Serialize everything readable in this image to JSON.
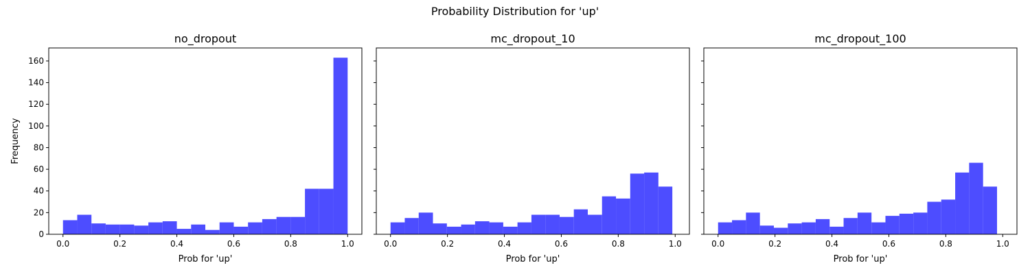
{
  "figure": {
    "suptitle": "Probability Distribution for 'up'",
    "ylabel": "Frequency"
  },
  "chart_data": [
    {
      "type": "bar",
      "title": "no_dropout",
      "xlabel": "Prob for 'up'",
      "ylabel": "Frequency",
      "xlim": [
        -0.05,
        1.05
      ],
      "ylim": [
        0,
        172
      ],
      "xticks": [
        "0.0",
        "0.2",
        "0.4",
        "0.6",
        "0.8",
        "1.0"
      ],
      "yticks": [
        "0",
        "20",
        "40",
        "60",
        "80",
        "100",
        "120",
        "140",
        "160"
      ],
      "bar_color": "#4d4dff",
      "bins": [
        {
          "x0": 0.0,
          "x1": 0.05,
          "count": 13
        },
        {
          "x0": 0.05,
          "x1": 0.1,
          "count": 18
        },
        {
          "x0": 0.1,
          "x1": 0.15,
          "count": 10
        },
        {
          "x0": 0.15,
          "x1": 0.2,
          "count": 9
        },
        {
          "x0": 0.2,
          "x1": 0.25,
          "count": 9
        },
        {
          "x0": 0.25,
          "x1": 0.3,
          "count": 8
        },
        {
          "x0": 0.3,
          "x1": 0.35,
          "count": 11
        },
        {
          "x0": 0.35,
          "x1": 0.4,
          "count": 12
        },
        {
          "x0": 0.4,
          "x1": 0.45,
          "count": 5
        },
        {
          "x0": 0.45,
          "x1": 0.5,
          "count": 9
        },
        {
          "x0": 0.5,
          "x1": 0.55,
          "count": 4
        },
        {
          "x0": 0.55,
          "x1": 0.6,
          "count": 11
        },
        {
          "x0": 0.6,
          "x1": 0.65,
          "count": 7
        },
        {
          "x0": 0.65,
          "x1": 0.7,
          "count": 11
        },
        {
          "x0": 0.7,
          "x1": 0.75,
          "count": 14
        },
        {
          "x0": 0.75,
          "x1": 0.8,
          "count": 16
        },
        {
          "x0": 0.8,
          "x1": 0.85,
          "count": 16
        },
        {
          "x0": 0.85,
          "x1": 0.9,
          "count": 42
        },
        {
          "x0": 0.9,
          "x1": 0.95,
          "count": 42
        },
        {
          "x0": 0.95,
          "x1": 1.0,
          "count": 163
        }
      ]
    },
    {
      "type": "bar",
      "title": "mc_dropout_10",
      "xlabel": "Prob for 'up'",
      "xlim": [
        -0.05,
        1.05
      ],
      "ylim": [
        0,
        172
      ],
      "xticks": [
        "0.0",
        "0.2",
        "0.4",
        "0.6",
        "0.8",
        "1.0"
      ],
      "bar_color": "#4d4dff",
      "bins": [
        {
          "x0": 0.0,
          "x1": 0.05,
          "count": 11
        },
        {
          "x0": 0.05,
          "x1": 0.099,
          "count": 15
        },
        {
          "x0": 0.099,
          "x1": 0.149,
          "count": 20
        },
        {
          "x0": 0.149,
          "x1": 0.198,
          "count": 10
        },
        {
          "x0": 0.198,
          "x1": 0.248,
          "count": 7
        },
        {
          "x0": 0.248,
          "x1": 0.297,
          "count": 9
        },
        {
          "x0": 0.297,
          "x1": 0.347,
          "count": 12
        },
        {
          "x0": 0.347,
          "x1": 0.396,
          "count": 11
        },
        {
          "x0": 0.396,
          "x1": 0.446,
          "count": 7
        },
        {
          "x0": 0.446,
          "x1": 0.495,
          "count": 11
        },
        {
          "x0": 0.495,
          "x1": 0.545,
          "count": 18
        },
        {
          "x0": 0.545,
          "x1": 0.594,
          "count": 18
        },
        {
          "x0": 0.594,
          "x1": 0.644,
          "count": 16
        },
        {
          "x0": 0.644,
          "x1": 0.693,
          "count": 23
        },
        {
          "x0": 0.693,
          "x1": 0.743,
          "count": 18
        },
        {
          "x0": 0.743,
          "x1": 0.792,
          "count": 35
        },
        {
          "x0": 0.792,
          "x1": 0.842,
          "count": 33
        },
        {
          "x0": 0.842,
          "x1": 0.891,
          "count": 56
        },
        {
          "x0": 0.891,
          "x1": 0.941,
          "count": 57
        },
        {
          "x0": 0.941,
          "x1": 0.99,
          "count": 44
        }
      ]
    },
    {
      "type": "bar",
      "title": "mc_dropout_100",
      "xlabel": "Prob for 'up'",
      "xlim": [
        -0.05,
        1.05
      ],
      "ylim": [
        0,
        172
      ],
      "xticks": [
        "0.0",
        "0.2",
        "0.4",
        "0.6",
        "0.8",
        "1.0"
      ],
      "bar_color": "#4d4dff",
      "bins": [
        {
          "x0": 0.0,
          "x1": 0.049,
          "count": 11
        },
        {
          "x0": 0.049,
          "x1": 0.098,
          "count": 13
        },
        {
          "x0": 0.098,
          "x1": 0.147,
          "count": 20
        },
        {
          "x0": 0.147,
          "x1": 0.196,
          "count": 8
        },
        {
          "x0": 0.196,
          "x1": 0.245,
          "count": 6
        },
        {
          "x0": 0.245,
          "x1": 0.294,
          "count": 10
        },
        {
          "x0": 0.294,
          "x1": 0.343,
          "count": 11
        },
        {
          "x0": 0.343,
          "x1": 0.392,
          "count": 14
        },
        {
          "x0": 0.392,
          "x1": 0.441,
          "count": 7
        },
        {
          "x0": 0.441,
          "x1": 0.49,
          "count": 15
        },
        {
          "x0": 0.49,
          "x1": 0.539,
          "count": 20
        },
        {
          "x0": 0.539,
          "x1": 0.588,
          "count": 11
        },
        {
          "x0": 0.588,
          "x1": 0.637,
          "count": 17
        },
        {
          "x0": 0.637,
          "x1": 0.686,
          "count": 19
        },
        {
          "x0": 0.686,
          "x1": 0.735,
          "count": 20
        },
        {
          "x0": 0.735,
          "x1": 0.784,
          "count": 30
        },
        {
          "x0": 0.784,
          "x1": 0.833,
          "count": 32
        },
        {
          "x0": 0.833,
          "x1": 0.882,
          "count": 57
        },
        {
          "x0": 0.882,
          "x1": 0.931,
          "count": 66
        },
        {
          "x0": 0.931,
          "x1": 0.98,
          "count": 44
        }
      ]
    }
  ]
}
